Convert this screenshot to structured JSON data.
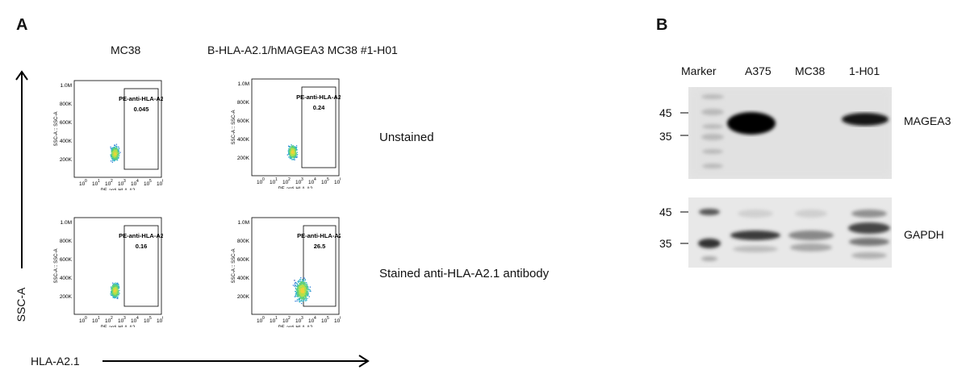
{
  "panel_a": {
    "letter": "A",
    "columns": [
      "MC38",
      "B-HLA-A2.1/hMAGEA3 MC38 #1-H01"
    ],
    "rows": [
      "Unstained",
      "Stained anti-HLA-A2.1 antibody"
    ],
    "y_axis": "SSC-A",
    "x_axis": "HLA-A2.1",
    "plots": [
      {
        "gate": "PE-anti-HLA-A2",
        "value": "0.045"
      },
      {
        "gate": "PE-anti-HLA-A2",
        "value": "0.24"
      },
      {
        "gate": "PE-anti-HLA-A2",
        "value": "0.16"
      },
      {
        "gate": "PE-anti-HLA-A2",
        "value": "26.5"
      }
    ],
    "plot_ylabel": "SSC-A :: SSC-A",
    "plot_xlabel": "PE-anti-HLA-A2",
    "yticks": [
      "1.0M",
      "800K",
      "600K",
      "400K",
      "200K"
    ],
    "xticks": [
      "10",
      "10",
      "10",
      "10",
      "10",
      "10",
      "10"
    ],
    "xexp": [
      "0",
      "1",
      "2",
      "3",
      "4",
      "5",
      "6"
    ]
  },
  "panel_b": {
    "letter": "B",
    "lanes": [
      "Marker",
      "A375",
      "MC38",
      "1-H01"
    ],
    "blots": [
      {
        "label": "MAGEA3",
        "markers": [
          "45",
          "35"
        ]
      },
      {
        "label": "GAPDH",
        "markers": [
          "45",
          "35"
        ]
      }
    ]
  }
}
